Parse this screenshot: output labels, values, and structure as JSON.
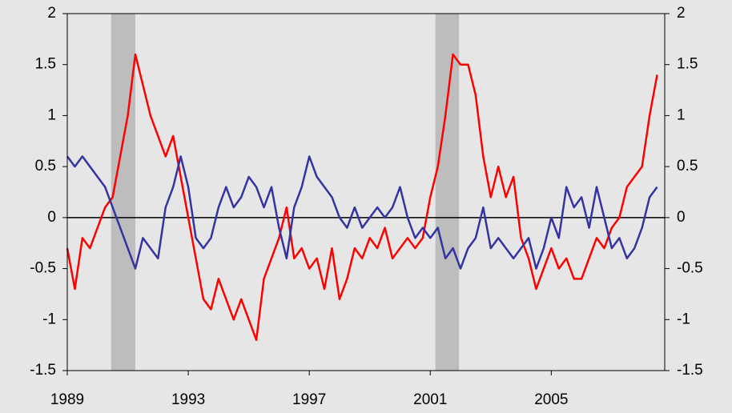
{
  "chart_data": {
    "type": "line",
    "x": [
      1989,
      1989.25,
      1989.5,
      1989.75,
      1990,
      1990.25,
      1990.5,
      1990.75,
      1991,
      1991.25,
      1991.5,
      1991.75,
      1992,
      1992.25,
      1992.5,
      1992.75,
      1993,
      1993.25,
      1993.5,
      1993.75,
      1994,
      1994.25,
      1994.5,
      1994.75,
      1995,
      1995.25,
      1995.5,
      1995.75,
      1996,
      1996.25,
      1996.5,
      1996.75,
      1997,
      1997.25,
      1997.5,
      1997.75,
      1998,
      1998.25,
      1998.5,
      1998.75,
      1999,
      1999.25,
      1999.5,
      1999.75,
      2000,
      2000.25,
      2000.5,
      2000.75,
      2001,
      2001.25,
      2001.5,
      2001.75,
      2002,
      2002.25,
      2002.5,
      2002.75,
      2003,
      2003.25,
      2003.5,
      2003.75,
      2004,
      2004.25,
      2004.5,
      2004.75,
      2005,
      2005.25,
      2005.5,
      2005.75,
      2006,
      2006.25,
      2006.5,
      2006.75,
      2007,
      2007.25,
      2007.5,
      2007.75,
      2008,
      2008.25,
      2008.5
    ],
    "series": [
      {
        "color": "#ff0000",
        "values": [
          -0.3,
          -0.7,
          -0.2,
          -0.3,
          -0.1,
          0.1,
          0.2,
          0.6,
          1.0,
          1.6,
          1.3,
          1.0,
          0.8,
          0.6,
          0.8,
          0.4,
          0.0,
          -0.4,
          -0.8,
          -0.9,
          -0.6,
          -0.8,
          -1.0,
          -0.8,
          -1.0,
          -1.2,
          -0.6,
          -0.4,
          -0.2,
          0.1,
          -0.4,
          -0.3,
          -0.5,
          -0.4,
          -0.7,
          -0.3,
          -0.8,
          -0.6,
          -0.3,
          -0.4,
          -0.2,
          -0.3,
          -0.1,
          -0.4,
          -0.3,
          -0.2,
          -0.3,
          -0.2,
          0.2,
          0.5,
          1.0,
          1.6,
          1.5,
          1.5,
          1.2,
          0.6,
          0.2,
          0.5,
          0.2,
          0.4,
          -0.2,
          -0.4,
          -0.7,
          -0.5,
          -0.3,
          -0.5,
          -0.4,
          -0.6,
          -0.6,
          -0.4,
          -0.2,
          -0.3,
          -0.1,
          0.0,
          0.3,
          0.4,
          0.5,
          1.0,
          1.4
        ]
      },
      {
        "color": "#3434a0",
        "values": [
          0.6,
          0.5,
          0.6,
          0.5,
          0.4,
          0.3,
          0.1,
          -0.1,
          -0.3,
          -0.5,
          -0.2,
          -0.3,
          -0.4,
          0.1,
          0.3,
          0.6,
          0.3,
          -0.2,
          -0.3,
          -0.2,
          0.1,
          0.3,
          0.1,
          0.2,
          0.4,
          0.3,
          0.1,
          0.3,
          -0.1,
          -0.4,
          0.1,
          0.3,
          0.6,
          0.4,
          0.3,
          0.2,
          0.0,
          -0.1,
          0.1,
          -0.1,
          0.0,
          0.1,
          0.0,
          0.1,
          0.3,
          0.0,
          -0.2,
          -0.1,
          -0.2,
          -0.1,
          -0.4,
          -0.3,
          -0.5,
          -0.3,
          -0.2,
          0.1,
          -0.3,
          -0.2,
          -0.3,
          -0.4,
          -0.3,
          -0.2,
          -0.5,
          -0.3,
          0.0,
          -0.2,
          0.3,
          0.1,
          0.2,
          -0.1,
          0.3,
          0.0,
          -0.3,
          -0.2,
          -0.4,
          -0.3,
          -0.1,
          0.2,
          0.3
        ]
      }
    ],
    "shaded_regions": [
      [
        1990.45,
        1991.25
      ],
      [
        2001.17,
        2001.95
      ]
    ],
    "shade_color": "#bdbdbd",
    "zero_line": true,
    "xlim": [
      1989,
      2008.75
    ],
    "xticks": [
      1989,
      1993,
      1997,
      2001,
      2005
    ],
    "ylim": [
      -1.5,
      2
    ],
    "yticks": [
      -1.5,
      -1,
      -0.5,
      0,
      0.5,
      1,
      1.5,
      2
    ],
    "y2lim": [
      -1.5,
      2
    ],
    "y2ticks": [
      -1.5,
      -1,
      -0.5,
      0,
      0.5,
      1,
      1.5,
      2
    ]
  }
}
